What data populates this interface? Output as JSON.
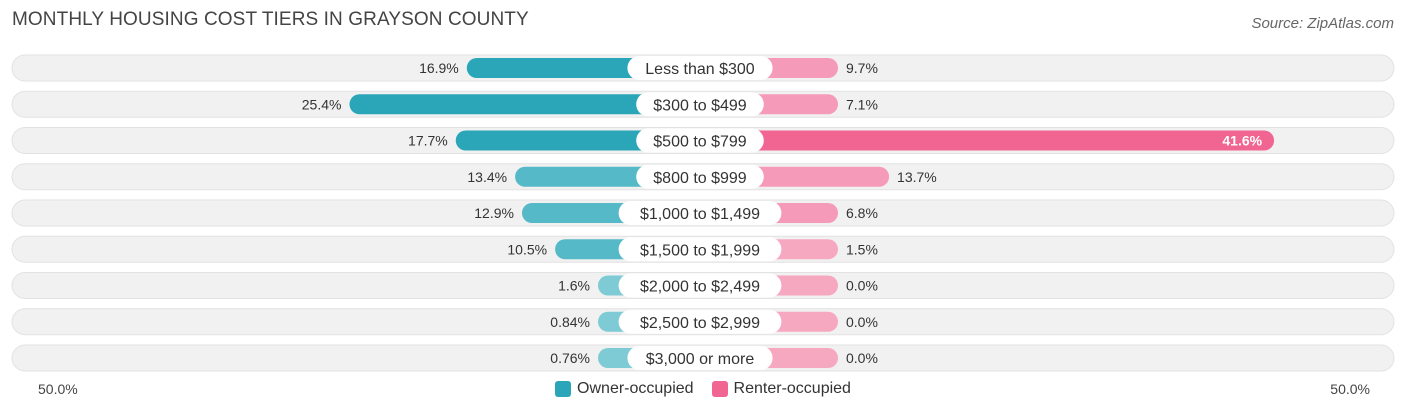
{
  "header": {
    "title": "MONTHLY HOUSING COST TIERS IN GRAYSON COUNTY",
    "source": "Source: ZipAtlas.com"
  },
  "colors": {
    "owner": "#2aa6b8",
    "owner_light": "#7ecbd6",
    "renter": "#f06592",
    "renter_light": "#f7a8c1",
    "row_bg": "#f1f1f1"
  },
  "chart_data": {
    "type": "bar",
    "orientation": "horizontal-diverging",
    "title": "MONTHLY HOUSING COST TIERS IN GRAYSON COUNTY",
    "categories": [
      "Less than $300",
      "$300 to $499",
      "$500 to $799",
      "$800 to $999",
      "$1,000 to $1,499",
      "$1,500 to $1,999",
      "$2,000 to $2,499",
      "$2,500 to $2,999",
      "$3,000 or more"
    ],
    "series": [
      {
        "name": "Owner-occupied",
        "values": [
          16.9,
          25.4,
          17.7,
          13.4,
          12.9,
          10.5,
          1.6,
          0.84,
          0.76
        ],
        "labels": [
          "16.9%",
          "25.4%",
          "17.7%",
          "13.4%",
          "12.9%",
          "10.5%",
          "1.6%",
          "0.84%",
          "0.76%"
        ]
      },
      {
        "name": "Renter-occupied",
        "values": [
          9.7,
          7.1,
          41.6,
          13.7,
          6.8,
          1.5,
          0.0,
          0.0,
          0.0
        ],
        "labels": [
          "9.7%",
          "7.1%",
          "41.6%",
          "13.7%",
          "6.8%",
          "1.5%",
          "0.0%",
          "0.0%",
          "0.0%"
        ]
      }
    ],
    "xlim": [
      -50,
      50
    ],
    "axis_left_label": "50.0%",
    "axis_right_label": "50.0%",
    "legend_position": "bottom-center"
  }
}
